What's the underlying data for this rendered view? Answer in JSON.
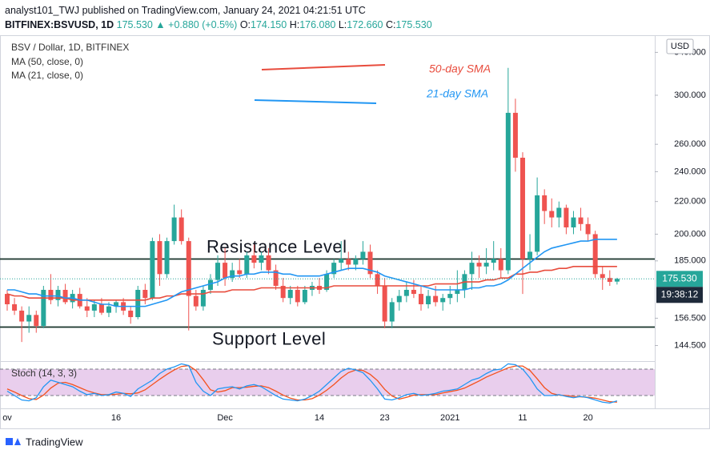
{
  "header": {
    "publisher": "analyst101_TWJ published on TradingView.com, January 24, 2021 04:21:51 UTC",
    "symbol": "BITFINEX:BSVUSD, 1D",
    "last": "175.530",
    "change": "+0.880 (+0.5%)",
    "ohlc": [
      {
        "k": "O:",
        "v": "174.150"
      },
      {
        "k": "H:",
        "v": "176.080"
      },
      {
        "k": "L:",
        "v": "172.660"
      },
      {
        "k": "C:",
        "v": "175.530"
      }
    ]
  },
  "chart_data": {
    "type": "candlestick",
    "title": "BSV / Dollar, 1D, BITFINEX",
    "currency": "USD",
    "price_label": "175.530",
    "countdown": "19:38:12",
    "up_color": "#26a69a",
    "down_color": "#ef5350",
    "log": true,
    "grid": false,
    "categories": [
      "ov",
      null,
      null,
      null,
      null,
      null,
      null,
      null,
      null,
      null,
      null,
      null,
      null,
      null,
      null,
      "16",
      null,
      null,
      null,
      null,
      null,
      null,
      null,
      null,
      null,
      null,
      null,
      null,
      null,
      null,
      "Dec",
      null,
      null,
      null,
      null,
      null,
      null,
      null,
      null,
      null,
      null,
      null,
      null,
      "14",
      null,
      null,
      null,
      null,
      null,
      null,
      null,
      null,
      "23",
      null,
      null,
      null,
      null,
      null,
      null,
      null,
      null,
      "2021",
      null,
      null,
      null,
      null,
      null,
      null,
      null,
      null,
      null,
      "11",
      null,
      null,
      null,
      null,
      null,
      null,
      null,
      null,
      "20",
      null,
      null,
      null,
      null
    ],
    "ohlc": [
      [
        168,
        170,
        160,
        163
      ],
      [
        163,
        166,
        158,
        160
      ],
      [
        160,
        162,
        146,
        155
      ],
      [
        155,
        162,
        150,
        158
      ],
      [
        158,
        160,
        150,
        153
      ],
      [
        153,
        172,
        152,
        170
      ],
      [
        170,
        178,
        163,
        165
      ],
      [
        165,
        172,
        162,
        170
      ],
      [
        170,
        173,
        163,
        164
      ],
      [
        164,
        170,
        161,
        168
      ],
      [
        168,
        171,
        161,
        162
      ],
      [
        162,
        166,
        157,
        160
      ],
      [
        160,
        165,
        157,
        163
      ],
      [
        163,
        166,
        158,
        159
      ],
      [
        159,
        164,
        157,
        162
      ],
      [
        162,
        165,
        159,
        164
      ],
      [
        164,
        166,
        158,
        160
      ],
      [
        160,
        162,
        154,
        157
      ],
      [
        157,
        172,
        156,
        170
      ],
      [
        170,
        173,
        163,
        166
      ],
      [
        166,
        198,
        165,
        196
      ],
      [
        196,
        200,
        172,
        178
      ],
      [
        178,
        198,
        176,
        196
      ],
      [
        196,
        218,
        194,
        210
      ],
      [
        210,
        215,
        194,
        196
      ],
      [
        196,
        198,
        151,
        167
      ],
      [
        167,
        170,
        160,
        162
      ],
      [
        162,
        172,
        160,
        170
      ],
      [
        170,
        178,
        168,
        175
      ],
      [
        175,
        188,
        172,
        184
      ],
      [
        184,
        192,
        172,
        176
      ],
      [
        176,
        184,
        174,
        180
      ],
      [
        180,
        186,
        176,
        178
      ],
      [
        178,
        190,
        176,
        188
      ],
      [
        188,
        194,
        181,
        184
      ],
      [
        184,
        190,
        180,
        188
      ],
      [
        188,
        192,
        178,
        180
      ],
      [
        180,
        183,
        170,
        172
      ],
      [
        172,
        176,
        164,
        166
      ],
      [
        166,
        172,
        163,
        170
      ],
      [
        170,
        172,
        162,
        164
      ],
      [
        164,
        172,
        163,
        170
      ],
      [
        170,
        174,
        167,
        172
      ],
      [
        172,
        176,
        168,
        170
      ],
      [
        170,
        180,
        169,
        178
      ],
      [
        178,
        186,
        176,
        184
      ],
      [
        184,
        196,
        180,
        186
      ],
      [
        186,
        190,
        180,
        183
      ],
      [
        183,
        188,
        180,
        186
      ],
      [
        186,
        196,
        183,
        190
      ],
      [
        190,
        194,
        176,
        178
      ],
      [
        178,
        180,
        168,
        172
      ],
      [
        172,
        176,
        152,
        155
      ],
      [
        155,
        166,
        152,
        164
      ],
      [
        164,
        170,
        160,
        167
      ],
      [
        167,
        174,
        164,
        170
      ],
      [
        170,
        175,
        166,
        168
      ],
      [
        168,
        172,
        160,
        163
      ],
      [
        163,
        170,
        161,
        167
      ],
      [
        167,
        172,
        162,
        164
      ],
      [
        164,
        168,
        160,
        166
      ],
      [
        166,
        172,
        163,
        168
      ],
      [
        168,
        180,
        164,
        170
      ],
      [
        170,
        180,
        166,
        178
      ],
      [
        178,
        190,
        170,
        184
      ],
      [
        184,
        188,
        176,
        182
      ],
      [
        182,
        192,
        178,
        184
      ],
      [
        184,
        196,
        180,
        186
      ],
      [
        186,
        192,
        176,
        180
      ],
      [
        180,
        325,
        178,
        285
      ],
      [
        285,
        297,
        240,
        250
      ],
      [
        250,
        254,
        168,
        186
      ],
      [
        186,
        200,
        180,
        190
      ],
      [
        190,
        236,
        188,
        224
      ],
      [
        224,
        228,
        206,
        214
      ],
      [
        214,
        222,
        204,
        210
      ],
      [
        210,
        220,
        204,
        216
      ],
      [
        216,
        218,
        200,
        204
      ],
      [
        204,
        214,
        200,
        210
      ],
      [
        210,
        216,
        202,
        206
      ],
      [
        206,
        210,
        196,
        200
      ],
      [
        200,
        202,
        176,
        178
      ],
      [
        178,
        182,
        170,
        176
      ],
      [
        176,
        180,
        172,
        174
      ],
      [
        174.15,
        176.08,
        172.66,
        175.53
      ]
    ],
    "series": [
      {
        "name": "MA (50, close, 0)",
        "color": "#e84c3d",
        "values": [
          168,
          167,
          167,
          166,
          166,
          166,
          166,
          166,
          166,
          165,
          165,
          165,
          165,
          165,
          165,
          165,
          165,
          165,
          165,
          165,
          166,
          166,
          167,
          167,
          168,
          168,
          168,
          168,
          169,
          169,
          169,
          170,
          170,
          170,
          170,
          171,
          171,
          171,
          171,
          171,
          171,
          171,
          171,
          171,
          171,
          172,
          172,
          172,
          172,
          172,
          172,
          172,
          172,
          172,
          172,
          172,
          172,
          172,
          172,
          173,
          173,
          173,
          173,
          174,
          174,
          174,
          175,
          175,
          176,
          176,
          178,
          178,
          179,
          179,
          180,
          180,
          181,
          181,
          182,
          182,
          182,
          182,
          182,
          182,
          182
        ]
      },
      {
        "name": "MA (21, close, 0)",
        "color": "#2196f3",
        "values": [
          170,
          170,
          169,
          168,
          168,
          167,
          167,
          167,
          166,
          166,
          165,
          165,
          164,
          163,
          163,
          162,
          162,
          162,
          162,
          162,
          163,
          164,
          165,
          167,
          169,
          170,
          171,
          172,
          173,
          174,
          176,
          177,
          177,
          178,
          178,
          179,
          179,
          179,
          178,
          178,
          177,
          177,
          177,
          177,
          178,
          179,
          180,
          181,
          181,
          181,
          180,
          179,
          177,
          176,
          175,
          174,
          173,
          172,
          171,
          170,
          170,
          170,
          170,
          170,
          171,
          171,
          172,
          172,
          173,
          175,
          178,
          181,
          184,
          187,
          190,
          192,
          193,
          194,
          195,
          196,
          196,
          197,
          197,
          197,
          197
        ]
      }
    ],
    "ylim": [
      138.4,
      356.6
    ],
    "yticks": [
      {
        "value": 340,
        "label": "340.000"
      },
      {
        "value": 300,
        "label": "300.000"
      },
      {
        "value": 260,
        "label": "260.000"
      },
      {
        "value": 240,
        "label": "240.000"
      },
      {
        "value": 220,
        "label": "220.000"
      },
      {
        "value": 200,
        "label": "200.000"
      },
      {
        "value": 185,
        "label": "185.000"
      },
      {
        "value": 156.5,
        "label": "156.500"
      },
      {
        "value": 144.5,
        "label": "144.500"
      }
    ],
    "levels": [
      {
        "label": "Resistance Level",
        "value": 186
      },
      {
        "label": "Support Level",
        "value": 152.5
      }
    ],
    "annotations": [
      {
        "text": "50-day SMA",
        "color": "#e84c3d"
      },
      {
        "text": "21-day SMA",
        "color": "#2196f3"
      }
    ],
    "stoch": {
      "title": "Stoch (14, 3, 3)",
      "ylim": [
        0,
        100
      ],
      "levels": [
        80,
        20
      ],
      "k": {
        "color": "#2196f3",
        "values": [
          30,
          20,
          10,
          8,
          15,
          40,
          55,
          50,
          45,
          40,
          30,
          22,
          25,
          20,
          22,
          28,
          25,
          18,
          35,
          45,
          55,
          70,
          80,
          85,
          92,
          88,
          50,
          30,
          20,
          35,
          38,
          40,
          35,
          42,
          45,
          40,
          30,
          20,
          12,
          10,
          8,
          12,
          20,
          30,
          45,
          60,
          75,
          82,
          78,
          72,
          55,
          35,
          12,
          10,
          15,
          22,
          25,
          20,
          22,
          25,
          30,
          32,
          35,
          45,
          55,
          60,
          70,
          78,
          80,
          92,
          90,
          80,
          60,
          35,
          20,
          20,
          22,
          18,
          15,
          18,
          15,
          10,
          5,
          3,
          8
        ]
      },
      "d": {
        "color": "#f4511e",
        "values": [
          35,
          28,
          20,
          13,
          11,
          21,
          37,
          48,
          50,
          45,
          38,
          31,
          26,
          22,
          22,
          23,
          25,
          24,
          26,
          33,
          45,
          57,
          68,
          78,
          86,
          88,
          77,
          56,
          33,
          28,
          31,
          38,
          38,
          39,
          41,
          42,
          38,
          30,
          21,
          14,
          10,
          10,
          13,
          21,
          32,
          45,
          60,
          72,
          78,
          77,
          68,
          54,
          34,
          19,
          12,
          16,
          21,
          22,
          22,
          22,
          26,
          29,
          32,
          37,
          45,
          53,
          62,
          69,
          76,
          83,
          87,
          87,
          77,
          58,
          38,
          25,
          21,
          20,
          18,
          17,
          16,
          14,
          10,
          6,
          5
        ]
      }
    }
  },
  "footer": {
    "brand": "TradingView"
  }
}
